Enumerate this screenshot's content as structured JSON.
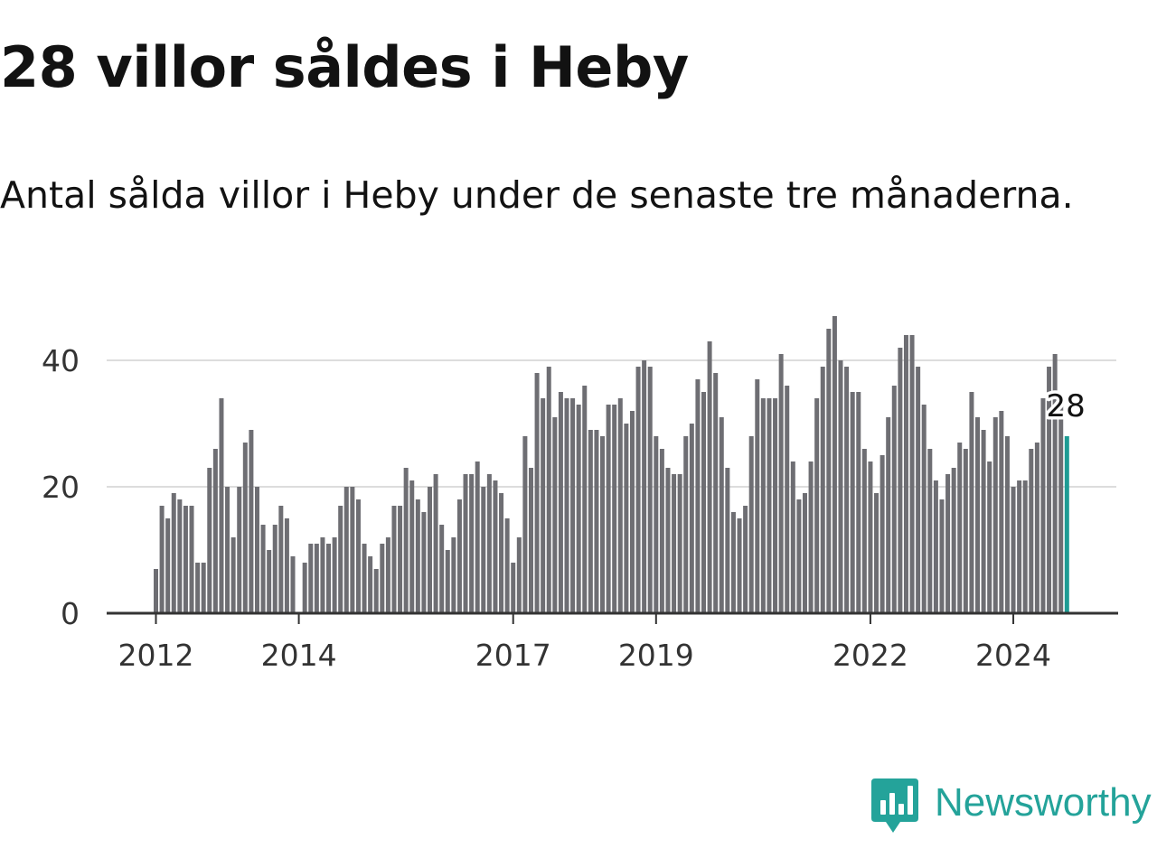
{
  "header": {
    "title": "28 villor såldes i Heby",
    "subtitle": "Antal sålda villor i Heby under de senaste tre månaderna."
  },
  "brand": {
    "name": "Newsworthy",
    "icon": "newsworthy-logo-icon",
    "color": "#24a39a"
  },
  "colors": {
    "bar": "#6e6e73",
    "highlight": "#1e9c94",
    "grid": "#dddddd",
    "axis": "#333333"
  },
  "chart_data": {
    "type": "bar",
    "title": "28 villor såldes i Heby",
    "subtitle": "Antal sålda villor i Heby under de senaste tre månaderna.",
    "xlabel": "",
    "ylabel": "",
    "ylim": [
      0,
      48
    ],
    "yticks": [
      0,
      20,
      40
    ],
    "xtick_labels": [
      "2012",
      "2014",
      "2017",
      "2019",
      "2022",
      "2024"
    ],
    "xtick_months": [
      "2012-01",
      "2014-01",
      "2017-01",
      "2019-01",
      "2022-01",
      "2024-01"
    ],
    "start_month": "2012-01",
    "grid": true,
    "highlight_last": true,
    "last_value_label": "28",
    "series": [
      {
        "name": "Antal sålda villor",
        "values": [
          7,
          17,
          15,
          19,
          18,
          17,
          17,
          8,
          8,
          23,
          26,
          34,
          20,
          12,
          20,
          27,
          29,
          20,
          14,
          10,
          14,
          17,
          15,
          9,
          null,
          8,
          11,
          11,
          12,
          11,
          12,
          17,
          20,
          20,
          18,
          11,
          9,
          7,
          11,
          12,
          17,
          17,
          23,
          21,
          18,
          16,
          20,
          22,
          14,
          10,
          12,
          18,
          22,
          22,
          24,
          20,
          22,
          21,
          19,
          15,
          8,
          12,
          28,
          23,
          38,
          34,
          39,
          31,
          35,
          34,
          34,
          33,
          36,
          29,
          29,
          28,
          33,
          33,
          34,
          30,
          32,
          39,
          40,
          39,
          28,
          26,
          23,
          22,
          22,
          28,
          30,
          37,
          35,
          43,
          38,
          31,
          23,
          16,
          15,
          17,
          28,
          37,
          34,
          34,
          34,
          41,
          36,
          24,
          18,
          19,
          24,
          34,
          39,
          45,
          47,
          40,
          39,
          35,
          35,
          26,
          24,
          19,
          25,
          31,
          36,
          42,
          44,
          44,
          39,
          33,
          26,
          21,
          18,
          22,
          23,
          27,
          26,
          35,
          31,
          29,
          24,
          31,
          32,
          28,
          20,
          21,
          21,
          26,
          27,
          34,
          39,
          41,
          34,
          28
        ]
      }
    ]
  }
}
